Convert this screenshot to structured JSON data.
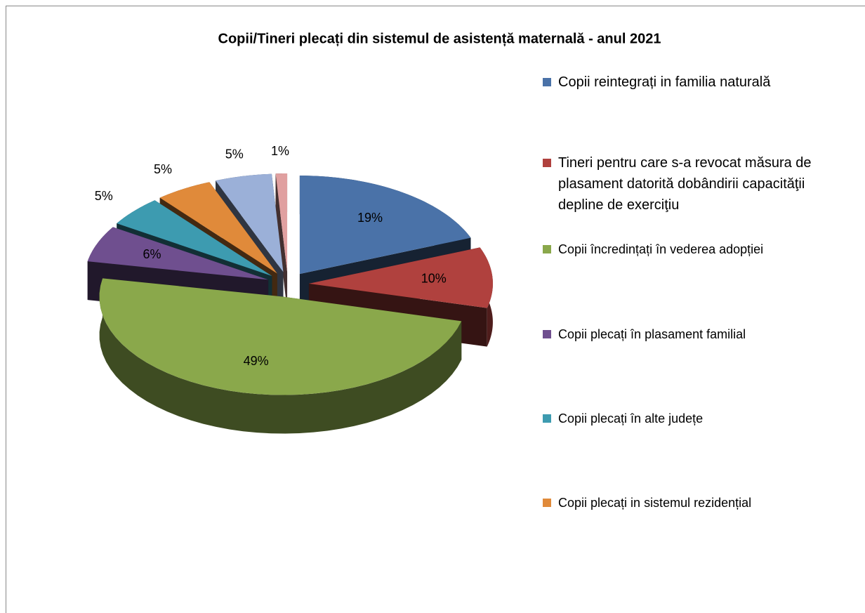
{
  "chart_data": {
    "type": "pie",
    "title": "Copii/Tineri plecați din sistemul de asistență maternală - anul 2021",
    "categories": [
      "Copii reintegrați  in familia naturală",
      "Tineri pentru care s-a revocat măsura de plasament datorită dobândirii capacităţii depline de exerciţiu",
      "Copii încredințați în vederea adopției",
      "Copii plecați în plasament familial",
      "Copii plecați în alte județe",
      "Copii plecați in sistemul rezidențial",
      null,
      null
    ],
    "values": [
      19,
      10,
      49,
      6,
      5,
      5,
      5,
      1
    ],
    "value_labels": [
      "19%",
      "10%",
      "49%",
      "6%",
      "5%",
      "5%",
      "5%",
      "1%"
    ],
    "colors": [
      "#4a72a8",
      "#b0413e",
      "#8aa84b",
      "#6f4f8f",
      "#3d9bb0",
      "#e08a3a",
      "#9bb0d8",
      "#e0a0a0"
    ],
    "legend": "right"
  }
}
